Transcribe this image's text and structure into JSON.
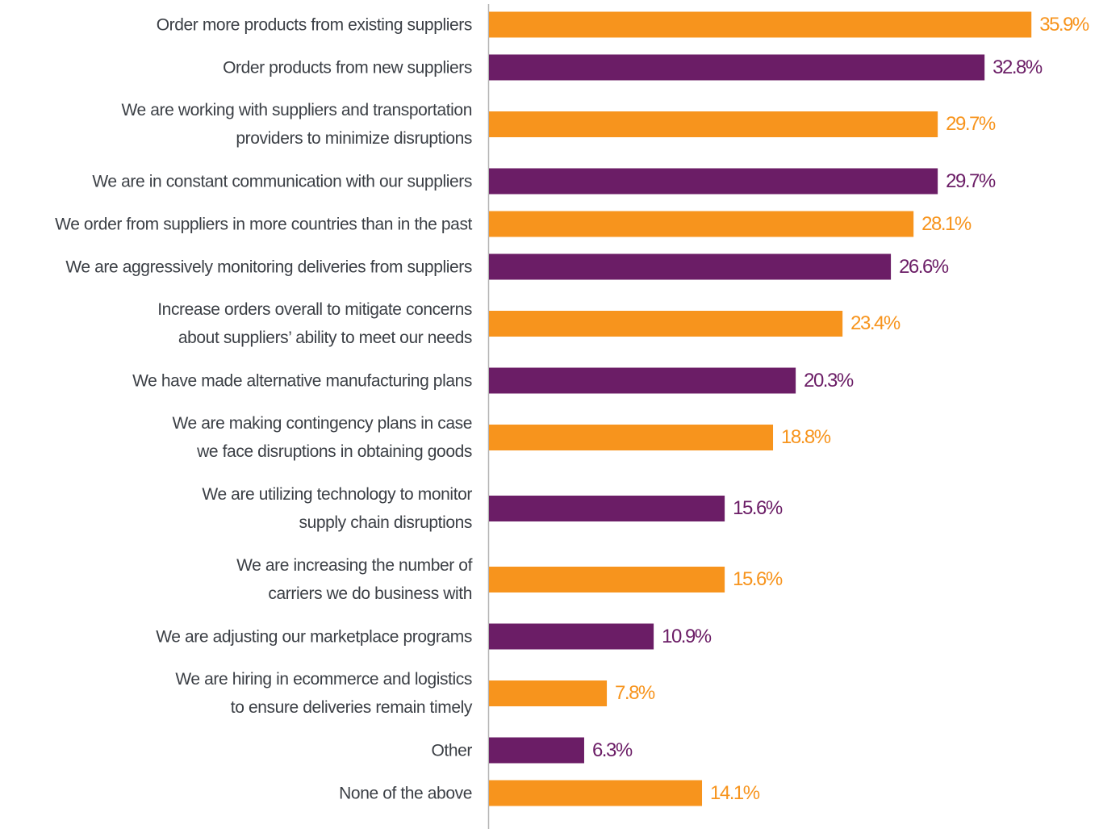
{
  "chart_data": {
    "type": "bar",
    "orientation": "horizontal",
    "categories": [
      "Order more products from existing suppliers",
      "Order products from new suppliers",
      "We are working with suppliers and transportation\nproviders to minimize disruptions",
      "We are in constant communication with our suppliers",
      "We order from suppliers in more countries than in the past",
      "We are aggressively monitoring deliveries from suppliers",
      "Increase orders overall to mitigate concerns\nabout suppliers’ ability to meet our needs",
      "We have made alternative manufacturing plans",
      "We are making contingency plans in case\nwe face disruptions in obtaining goods",
      "We are utilizing technology to monitor\nsupply chain disruptions",
      "We are increasing the number of\ncarriers we do business with",
      "We are adjusting our marketplace programs",
      "We are hiring in ecommerce and logistics\nto ensure deliveries remain timely",
      "Other",
      "None of the above"
    ],
    "values": [
      35.9,
      32.8,
      29.7,
      29.7,
      28.1,
      26.6,
      23.4,
      20.3,
      18.8,
      15.6,
      15.6,
      10.9,
      7.8,
      6.3,
      14.1
    ],
    "value_labels": [
      "35.9%",
      "32.8%",
      "29.7%",
      "29.7%",
      "28.1%",
      "26.6%",
      "23.4%",
      "20.3%",
      "18.8%",
      "15.6%",
      "15.6%",
      "10.9%",
      "7.8%",
      "6.3%",
      "14.1%"
    ],
    "colors": [
      "#f7941d",
      "#6b1d66",
      "#f7941d",
      "#6b1d66",
      "#f7941d",
      "#6b1d66",
      "#f7941d",
      "#6b1d66",
      "#f7941d",
      "#6b1d66",
      "#f7941d",
      "#6b1d66",
      "#f7941d",
      "#6b1d66",
      "#f7941d"
    ],
    "xlim": [
      0,
      40
    ]
  }
}
